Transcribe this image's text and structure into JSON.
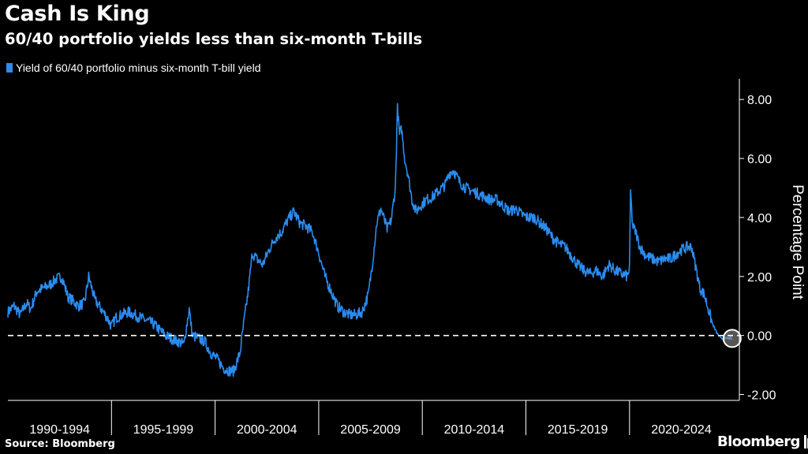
{
  "header": {
    "title": "Cash Is King",
    "subtitle": "60/40 portfolio yields less than six-month T-bills"
  },
  "footer": {
    "source": "Source: Bloomberg",
    "brand": "Bloomberg"
  },
  "colors": {
    "background": "#000000",
    "series": "#2b8cf0",
    "axis": "#ffffff",
    "zero_line": "#ffffff",
    "marker": "#9a9a9a"
  },
  "chart_data": {
    "type": "line",
    "title": "Cash Is King",
    "subtitle": "60/40 portfolio yields less than six-month T-bills",
    "xlabel": "",
    "ylabel": "Percentage Point",
    "xlim": [
      1990,
      2025.3
    ],
    "ylim": [
      -2.2,
      8.7
    ],
    "y_ticks": [
      8,
      6,
      4,
      2,
      0,
      -2
    ],
    "y_tick_labels": [
      "8.00",
      "6.00",
      "4.00",
      "2.00",
      "0.00",
      "-2.00"
    ],
    "x_periods": [
      {
        "label": "1990-1994",
        "start": 1990,
        "end": 1995
      },
      {
        "label": "1995-1999",
        "start": 1995,
        "end": 2000
      },
      {
        "label": "2000-2004",
        "start": 2000,
        "end": 2005
      },
      {
        "label": "2005-2009",
        "start": 2005,
        "end": 2010
      },
      {
        "label": "2010-2014",
        "start": 2010,
        "end": 2015
      },
      {
        "label": "2015-2019",
        "start": 2015,
        "end": 2020
      },
      {
        "label": "2020-2024",
        "start": 2020,
        "end": 2025
      }
    ],
    "reference_line": {
      "y": 0,
      "style": "dashed"
    },
    "highlight": {
      "x": 2024.95,
      "y": -0.1
    },
    "grid": false,
    "legend": {
      "position": "top-left",
      "entries": [
        "Yield of 60/40 portfolio minus six-month T-bill yield"
      ]
    },
    "series": [
      {
        "name": "Yield of 60/40 portfolio minus six-month T-bill yield",
        "x": [
          1990.0,
          1990.3,
          1990.6,
          1990.9,
          1991.1,
          1991.4,
          1991.7,
          1992.0,
          1992.3,
          1992.6,
          1992.9,
          1993.1,
          1993.4,
          1993.7,
          1993.9,
          1994.2,
          1994.5,
          1994.8,
          1995.0,
          1995.2,
          1995.5,
          1995.8,
          1996.1,
          1996.4,
          1996.7,
          1997.0,
          1997.3,
          1997.6,
          1997.9,
          1998.2,
          1998.5,
          1998.6,
          1998.75,
          1998.9,
          1999.2,
          1999.5,
          1999.8,
          2000.1,
          2000.4,
          2000.7,
          2000.9,
          2001.2,
          2001.4,
          2001.6,
          2001.8,
          2002.0,
          2002.3,
          2002.6,
          2002.9,
          2003.2,
          2003.5,
          2003.8,
          2004.1,
          2004.4,
          2004.7,
          2005.0,
          2005.3,
          2005.6,
          2005.9,
          2006.2,
          2006.5,
          2006.8,
          2007.1,
          2007.4,
          2007.6,
          2007.8,
          2008.0,
          2008.3,
          2008.5,
          2008.7,
          2008.8,
          2008.9,
          2009.0,
          2009.15,
          2009.3,
          2009.5,
          2009.7,
          2009.9,
          2010.2,
          2010.5,
          2010.8,
          2011.1,
          2011.3,
          2011.5,
          2011.8,
          2012.1,
          2012.4,
          2012.7,
          2013.0,
          2013.3,
          2013.6,
          2013.9,
          2014.2,
          2014.5,
          2014.8,
          2015.1,
          2015.4,
          2015.7,
          2016.0,
          2016.3,
          2016.6,
          2016.9,
          2017.2,
          2017.5,
          2017.8,
          2018.1,
          2018.4,
          2018.7,
          2019.0,
          2019.3,
          2019.6,
          2019.9,
          2020.0,
          2020.05,
          2020.15,
          2020.3,
          2020.5,
          2020.8,
          2021.1,
          2021.4,
          2021.7,
          2022.0,
          2022.3,
          2022.5,
          2022.8,
          2023.0,
          2023.2,
          2023.4,
          2023.6,
          2023.8,
          2024.0,
          2024.2,
          2024.4,
          2024.6,
          2024.8,
          2024.95
        ],
        "y": [
          0.8,
          1.0,
          0.7,
          1.1,
          0.9,
          1.5,
          1.6,
          1.7,
          1.9,
          2.0,
          1.3,
          1.2,
          1.0,
          1.1,
          2.0,
          1.2,
          0.9,
          0.6,
          0.3,
          0.6,
          0.7,
          0.8,
          0.7,
          0.6,
          0.5,
          0.4,
          0.2,
          0.0,
          -0.1,
          -0.2,
          -0.3,
          0.2,
          0.9,
          0.0,
          -0.1,
          -0.2,
          -0.6,
          -0.8,
          -1.1,
          -1.2,
          -1.2,
          -0.6,
          0.5,
          1.5,
          2.8,
          2.6,
          2.4,
          2.9,
          3.3,
          3.5,
          3.9,
          4.2,
          3.8,
          3.7,
          3.5,
          2.8,
          2.0,
          1.5,
          1.0,
          0.8,
          0.7,
          0.7,
          0.8,
          1.4,
          2.5,
          3.8,
          4.3,
          3.6,
          3.9,
          5.0,
          7.7,
          6.8,
          7.0,
          6.0,
          5.5,
          4.6,
          4.2,
          4.4,
          4.6,
          4.7,
          4.9,
          5.1,
          5.5,
          5.6,
          5.2,
          5.0,
          4.9,
          4.8,
          4.7,
          4.6,
          4.6,
          4.4,
          4.2,
          4.3,
          4.1,
          4.0,
          4.0,
          3.8,
          3.6,
          3.3,
          3.1,
          3.0,
          2.7,
          2.4,
          2.2,
          2.1,
          2.2,
          2.0,
          2.4,
          2.2,
          2.1,
          2.0,
          2.3,
          4.9,
          3.7,
          3.5,
          3.0,
          2.7,
          2.6,
          2.5,
          2.6,
          2.6,
          2.8,
          2.9,
          3.0,
          3.0,
          2.3,
          1.6,
          1.4,
          0.9,
          0.4,
          0.1,
          -0.1,
          -0.1,
          -0.1,
          -0.1
        ]
      }
    ]
  }
}
